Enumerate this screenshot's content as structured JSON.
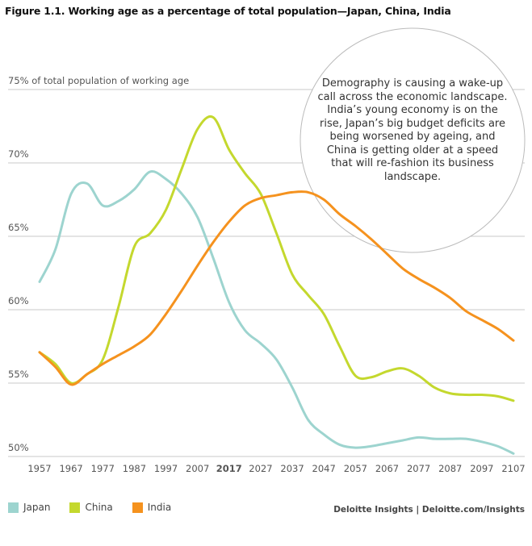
{
  "title": "Figure 1.1. Working age as a percentage of total population—Japan, China, India",
  "annotation": "Demography is causing a wake-up call across the economic landscape. India’s young economy is on the rise, Japan’s big budget deficits are being worsened by ageing, and China is getting older at a speed that will re-fashion its business landscape.",
  "source": "Deloitte Insights | Deloitte.com/Insights",
  "chart_data": {
    "type": "line",
    "title": "Figure 1.1. Working age as a percentage of total population—Japan, China, India",
    "ylabel": "75% of total population of working age",
    "xlabel": "",
    "ylim": [
      50,
      75
    ],
    "xlim": [
      1957,
      2107
    ],
    "grid": true,
    "legend": "bottom-left",
    "highlighted_x_tick": "2017",
    "x_ticks": [
      "1957",
      "1967",
      "1977",
      "1987",
      "1997",
      "2007",
      "2017",
      "2027",
      "2037",
      "2047",
      "2057",
      "2067",
      "2077",
      "2087",
      "2097",
      "2107"
    ],
    "y_ticks": [
      "50%",
      "55%",
      "60%",
      "65%",
      "70%",
      "75% of total population of working age"
    ],
    "x": [
      1957,
      1962,
      1967,
      1972,
      1977,
      1982,
      1987,
      1992,
      1997,
      2002,
      2007,
      2012,
      2017,
      2022,
      2027,
      2032,
      2037,
      2042,
      2047,
      2052,
      2057,
      2062,
      2067,
      2072,
      2077,
      2082,
      2087,
      2092,
      2097,
      2102,
      2107
    ],
    "series": [
      {
        "name": "Japan",
        "color": "#9dd4cf",
        "values": [
          61.9,
          64.1,
          67.9,
          68.6,
          67.1,
          67.4,
          68.2,
          69.4,
          68.9,
          67.9,
          66.3,
          63.5,
          60.5,
          58.6,
          57.7,
          56.6,
          54.7,
          52.5,
          51.5,
          50.8,
          50.6,
          50.7,
          50.9,
          51.1,
          51.3,
          51.2,
          51.2,
          51.2,
          51.0,
          50.7,
          50.2
        ]
      },
      {
        "name": "China",
        "color": "#c4d82e",
        "values": [
          57.1,
          56.3,
          55.0,
          55.6,
          56.6,
          60.2,
          64.3,
          65.2,
          66.8,
          69.6,
          72.3,
          73.1,
          70.9,
          69.3,
          67.9,
          65.2,
          62.4,
          61.0,
          59.7,
          57.5,
          55.5,
          55.4,
          55.8,
          56.0,
          55.5,
          54.7,
          54.3,
          54.2,
          54.2,
          54.1,
          53.8
        ]
      },
      {
        "name": "India",
        "color": "#f5921e",
        "values": [
          57.1,
          56.1,
          54.9,
          55.6,
          56.3,
          56.9,
          57.5,
          58.3,
          59.7,
          61.3,
          63.0,
          64.6,
          66.0,
          67.1,
          67.6,
          67.8,
          68.0,
          68.0,
          67.5,
          66.5,
          65.7,
          64.8,
          63.8,
          62.8,
          62.1,
          61.5,
          60.8,
          59.9,
          59.3,
          58.7,
          57.9
        ]
      }
    ]
  }
}
